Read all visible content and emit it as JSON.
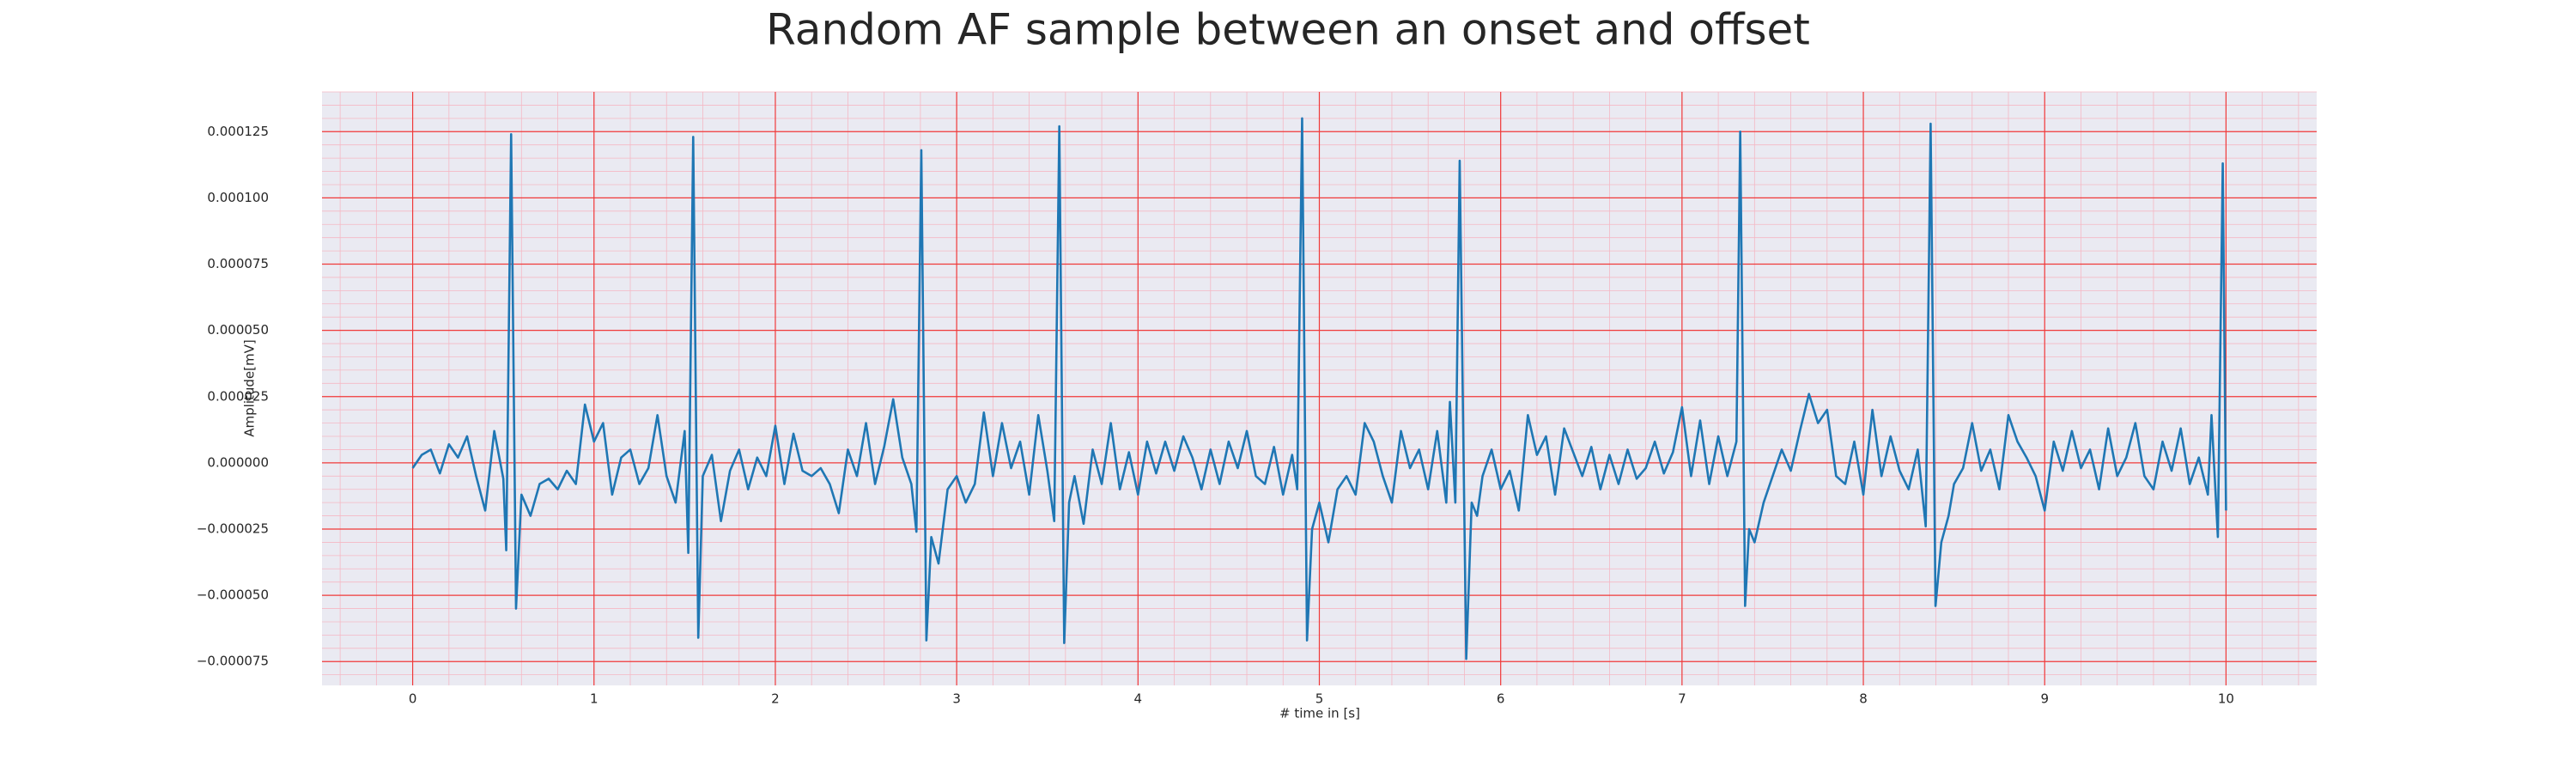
{
  "chart_data": {
    "type": "line",
    "title": "Random AF sample between an onset and offset",
    "xlabel": "# time in [s]",
    "ylabel": "Amplitude[mV]",
    "color": "#1f77b4",
    "grid": true,
    "grid_color": "#f03a3a",
    "minor_grid": true,
    "minor_grid_color": "#f5b8c4",
    "xlim": [
      -0.5,
      10.5
    ],
    "ylim": [
      -8.4e-05,
      0.00014
    ],
    "xticks": [
      0,
      1,
      2,
      3,
      4,
      5,
      6,
      7,
      8,
      9,
      10
    ],
    "yticks": [
      {
        "value": -7.5e-05,
        "label": "−0.000075"
      },
      {
        "value": -5e-05,
        "label": "−0.000050"
      },
      {
        "value": -2.5e-05,
        "label": "−0.000025"
      },
      {
        "value": 0,
        "label": "0.000000"
      },
      {
        "value": 2.5e-05,
        "label": "0.000025"
      },
      {
        "value": 5e-05,
        "label": "0.000050"
      },
      {
        "value": 7.5e-05,
        "label": "0.000075"
      },
      {
        "value": 0.0001,
        "label": "0.000100"
      },
      {
        "value": 0.000125,
        "label": "0.000125"
      }
    ],
    "x": [
      0,
      0.05,
      0.1,
      0.15,
      0.2,
      0.25,
      0.3,
      0.35,
      0.4,
      0.45,
      0.5,
      0.516,
      0.543,
      0.57,
      0.6,
      0.65,
      0.7,
      0.75,
      0.8,
      0.85,
      0.9,
      0.95,
      1.0,
      1.05,
      1.1,
      1.15,
      1.2,
      1.25,
      1.3,
      1.35,
      1.4,
      1.45,
      1.5,
      1.52,
      1.547,
      1.575,
      1.6,
      1.65,
      1.7,
      1.75,
      1.8,
      1.85,
      1.9,
      1.95,
      2.0,
      2.05,
      2.1,
      2.15,
      2.2,
      2.25,
      2.3,
      2.35,
      2.4,
      2.45,
      2.5,
      2.55,
      2.6,
      2.65,
      2.7,
      2.75,
      2.778,
      2.805,
      2.833,
      2.86,
      2.9,
      2.95,
      3.0,
      3.05,
      3.1,
      3.15,
      3.2,
      3.25,
      3.3,
      3.35,
      3.4,
      3.45,
      3.5,
      3.538,
      3.566,
      3.593,
      3.62,
      3.65,
      3.7,
      3.75,
      3.8,
      3.85,
      3.9,
      3.95,
      4.0,
      4.05,
      4.1,
      4.15,
      4.2,
      4.25,
      4.3,
      4.35,
      4.4,
      4.45,
      4.5,
      4.55,
      4.6,
      4.65,
      4.7,
      4.75,
      4.8,
      4.85,
      4.878,
      4.905,
      4.932,
      4.96,
      5.0,
      5.05,
      5.1,
      5.15,
      5.2,
      5.25,
      5.3,
      5.35,
      5.4,
      5.45,
      5.5,
      5.55,
      5.6,
      5.65,
      5.7,
      5.72,
      5.75,
      5.774,
      5.81,
      5.84,
      5.87,
      5.9,
      5.95,
      6.0,
      6.05,
      6.1,
      6.15,
      6.2,
      6.25,
      6.3,
      6.35,
      6.4,
      6.45,
      6.5,
      6.55,
      6.6,
      6.65,
      6.7,
      6.75,
      6.8,
      6.85,
      6.9,
      6.95,
      7.0,
      7.05,
      7.1,
      7.15,
      7.2,
      7.25,
      7.3,
      7.321,
      7.348,
      7.37,
      7.4,
      7.45,
      7.5,
      7.55,
      7.6,
      7.65,
      7.7,
      7.75,
      7.8,
      7.85,
      7.9,
      7.95,
      8.0,
      8.05,
      8.1,
      8.15,
      8.2,
      8.25,
      8.3,
      8.344,
      8.371,
      8.398,
      8.43,
      8.47,
      8.5,
      8.55,
      8.6,
      8.65,
      8.7,
      8.75,
      8.8,
      8.85,
      8.9,
      8.95,
      9.0,
      9.05,
      9.1,
      9.15,
      9.2,
      9.25,
      9.3,
      9.35,
      9.4,
      9.45,
      9.5,
      9.55,
      9.6,
      9.65,
      9.7,
      9.75,
      9.8,
      9.85,
      9.9,
      9.92,
      9.955,
      9.982,
      10.0
    ],
    "values": [
      -2e-06,
      3e-06,
      5e-06,
      -4e-06,
      7e-06,
      2e-06,
      1e-05,
      -5e-06,
      -1.8e-05,
      1.2e-05,
      -6e-06,
      -3.3e-05,
      0.000124,
      -5.5e-05,
      -1.2e-05,
      -2e-05,
      -8e-06,
      -6e-06,
      -1e-05,
      -3e-06,
      -8e-06,
      2.2e-05,
      8e-06,
      1.5e-05,
      -1.2e-05,
      2e-06,
      5e-06,
      -8e-06,
      -2e-06,
      1.8e-05,
      -5e-06,
      -1.5e-05,
      1.2e-05,
      -3.4e-05,
      0.000123,
      -6.6e-05,
      -5e-06,
      3e-06,
      -2.2e-05,
      -3e-06,
      5e-06,
      -1e-05,
      2e-06,
      -5e-06,
      1.4e-05,
      -8e-06,
      1.1e-05,
      -3e-06,
      -5e-06,
      -2e-06,
      -8e-06,
      -1.9e-05,
      5e-06,
      -5e-06,
      1.5e-05,
      -8e-06,
      6e-06,
      2.4e-05,
      2e-06,
      -8e-06,
      -2.6e-05,
      0.000118,
      -6.7e-05,
      -2.8e-05,
      -3.8e-05,
      -1e-05,
      -5e-06,
      -1.5e-05,
      -8e-06,
      1.9e-05,
      -5e-06,
      1.5e-05,
      -2e-06,
      8e-06,
      -1.2e-05,
      1.8e-05,
      -3e-06,
      -2.2e-05,
      0.000127,
      -6.8e-05,
      -1.5e-05,
      -5e-06,
      -2.3e-05,
      5e-06,
      -8e-06,
      1.5e-05,
      -1e-05,
      4e-06,
      -1.2e-05,
      8e-06,
      -4e-06,
      8e-06,
      -3e-06,
      1e-05,
      2e-06,
      -1e-05,
      5e-06,
      -8e-06,
      8e-06,
      -2e-06,
      1.2e-05,
      -5e-06,
      -8e-06,
      6e-06,
      -1.2e-05,
      3e-06,
      -1e-05,
      0.00013,
      -6.7e-05,
      -2.5e-05,
      -1.5e-05,
      -3e-05,
      -1e-05,
      -5e-06,
      -1.2e-05,
      1.5e-05,
      8e-06,
      -5e-06,
      -1.5e-05,
      1.2e-05,
      -2e-06,
      5e-06,
      -1e-05,
      1.2e-05,
      -1.5e-05,
      2.3e-05,
      -1.5e-05,
      0.000114,
      -7.4e-05,
      -1.5e-05,
      -2e-05,
      -5e-06,
      5e-06,
      -1e-05,
      -3e-06,
      -1.8e-05,
      1.8e-05,
      3e-06,
      1e-05,
      -1.2e-05,
      1.3e-05,
      4e-06,
      -5e-06,
      6e-06,
      -1e-05,
      3e-06,
      -8e-06,
      5e-06,
      -6e-06,
      -2e-06,
      8e-06,
      -4e-06,
      4e-06,
      2.1e-05,
      -5e-06,
      1.6e-05,
      -8e-06,
      1e-05,
      -5e-06,
      8e-06,
      0.000125,
      -5.4e-05,
      -2.5e-05,
      -3e-05,
      -1.5e-05,
      -5e-06,
      5e-06,
      -3e-06,
      1.2e-05,
      2.6e-05,
      1.5e-05,
      2e-05,
      -5e-06,
      -8e-06,
      8e-06,
      -1.2e-05,
      2e-05,
      -5e-06,
      1e-05,
      -3e-06,
      -1e-05,
      5e-06,
      -2.4e-05,
      0.000128,
      -5.4e-05,
      -3e-05,
      -2e-05,
      -8e-06,
      -2e-06,
      1.5e-05,
      -3e-06,
      5e-06,
      -1e-05,
      1.8e-05,
      8e-06,
      2e-06,
      -5e-06,
      -1.8e-05,
      8e-06,
      -3e-06,
      1.2e-05,
      -2e-06,
      5e-06,
      -1e-05,
      1.3e-05,
      -5e-06,
      2e-06,
      1.5e-05,
      -5e-06,
      -1e-05,
      8e-06,
      -3e-06,
      1.3e-05,
      -8e-06,
      2e-06,
      -1.2e-05,
      1.8e-05,
      -2.8e-05,
      0.000113,
      -1.8e-05
    ]
  }
}
